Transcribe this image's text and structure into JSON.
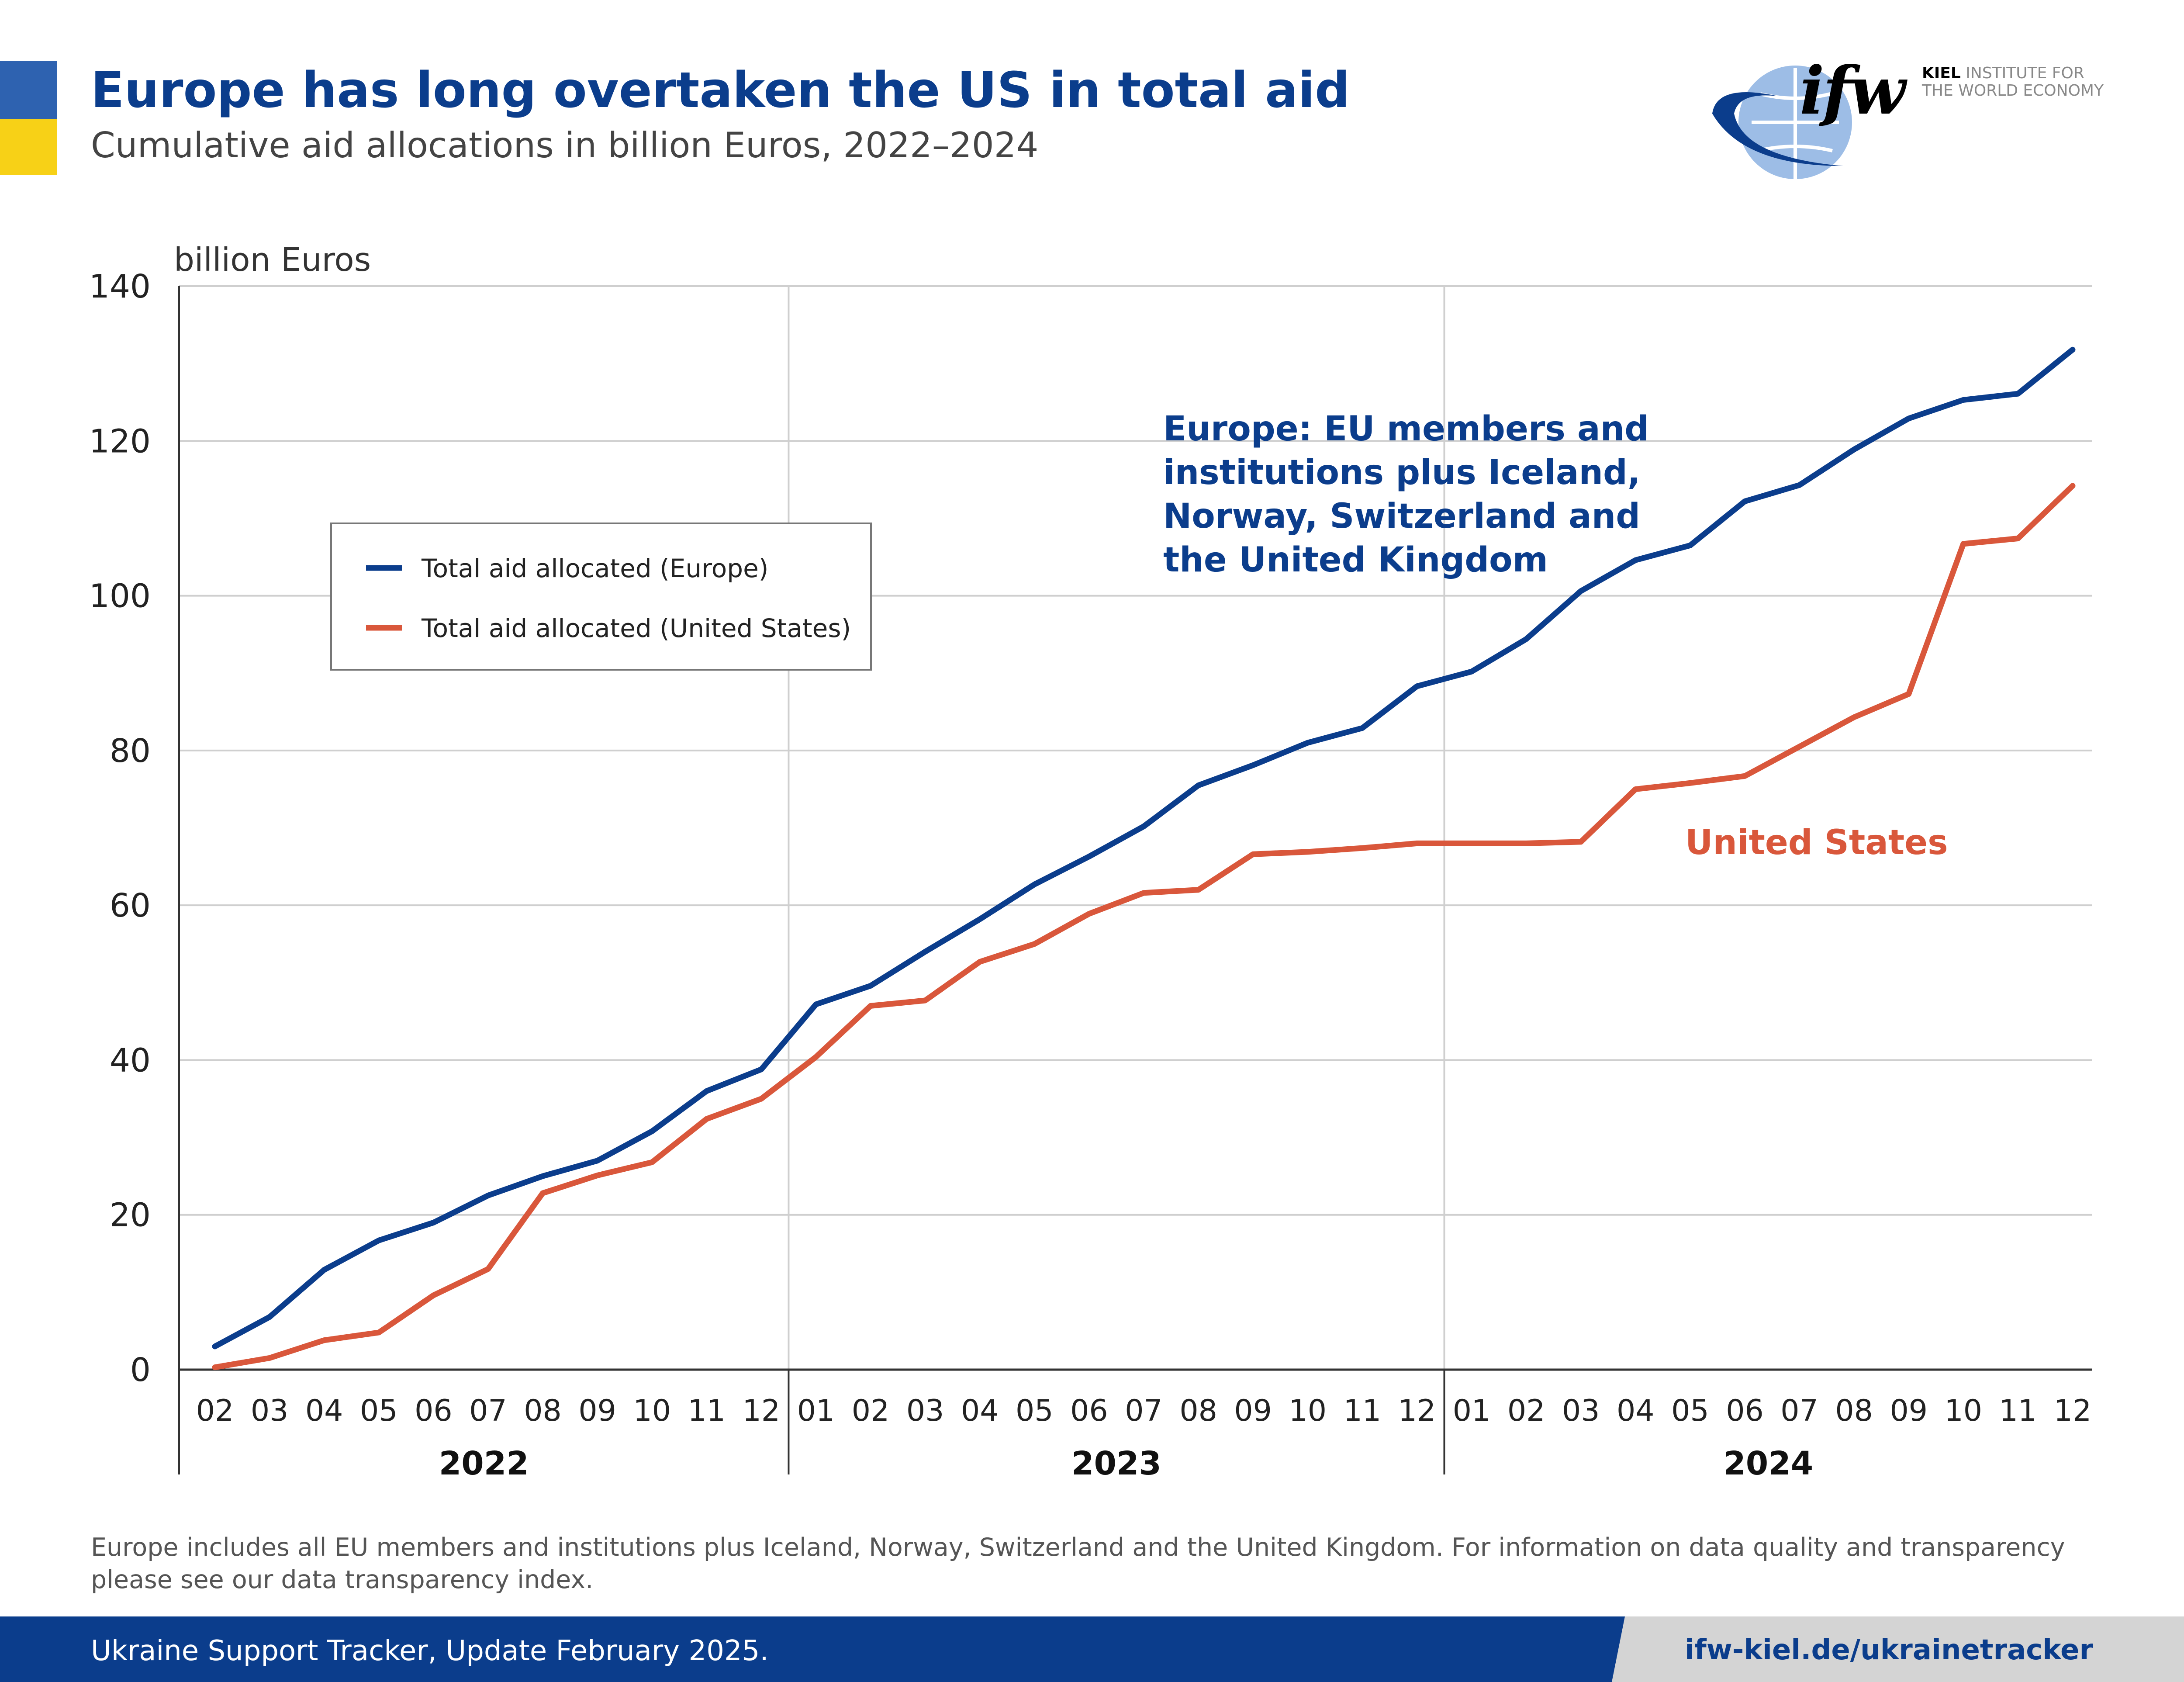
{
  "header": {
    "title": "Europe has long overtaken the US in total aid",
    "subtitle": "Cumulative aid allocations in billion Euros, 2022–2024"
  },
  "logo": {
    "mark": "ifw",
    "name_bold": "KIEL",
    "name_rest": " INSTITUTE FOR",
    "name_line2": "THE WORLD ECONOMY"
  },
  "chart_data": {
    "type": "line",
    "ylabel": "billion Euros",
    "ylim": [
      0,
      140
    ],
    "yticks": [
      0,
      20,
      40,
      60,
      80,
      100,
      120,
      140
    ],
    "grid": true,
    "legend_position": "upper-left",
    "x": [
      "02",
      "03",
      "04",
      "05",
      "06",
      "07",
      "08",
      "09",
      "10",
      "11",
      "12",
      "01",
      "02",
      "03",
      "04",
      "05",
      "06",
      "07",
      "08",
      "09",
      "10",
      "11",
      "12",
      "01",
      "02",
      "03",
      "04",
      "05",
      "06",
      "07",
      "08",
      "09",
      "10",
      "11",
      "12"
    ],
    "year_groups": [
      {
        "year": "2022",
        "count": 11
      },
      {
        "year": "2023",
        "count": 12
      },
      {
        "year": "2024",
        "count": 12
      }
    ],
    "series": [
      {
        "name": "Total aid allocated (Europe)",
        "color": "#0b3d8c",
        "values": [
          3.0,
          6.8,
          12.9,
          16.7,
          19.0,
          22.5,
          25.0,
          27.0,
          30.8,
          36.0,
          38.8,
          47.2,
          49.6,
          54.0,
          58.2,
          62.7,
          66.3,
          70.2,
          75.5,
          78.1,
          81.0,
          82.9,
          88.3,
          90.2,
          94.4,
          100.6,
          104.6,
          106.5,
          112.2,
          114.3,
          118.9,
          122.9,
          125.3,
          126.1,
          131.8
        ]
      },
      {
        "name": "Total aid allocated (United States)",
        "color": "#d9573b",
        "values": [
          0.3,
          1.5,
          3.8,
          4.8,
          9.6,
          13.0,
          22.8,
          25.1,
          26.8,
          32.4,
          35.0,
          40.4,
          47.0,
          47.7,
          52.7,
          55.0,
          58.9,
          61.6,
          62.0,
          66.6,
          66.9,
          67.4,
          68.0,
          68.0,
          68.0,
          68.2,
          75.0,
          75.8,
          76.7,
          80.5,
          84.3,
          87.3,
          106.7,
          107.4,
          114.2
        ]
      }
    ],
    "annotations": [
      {
        "lines": [
          "Europe: EU members and",
          "institutions plus Iceland,",
          "Norway, Switzerland and",
          "the United Kingdom"
        ],
        "color": "#0b3d8c"
      },
      {
        "lines": [
          "United States"
        ],
        "color": "#d9573b"
      }
    ]
  },
  "footnote": "Europe includes all EU members and institutions plus Iceland, Norway, Switzerland and the United Kingdom. For information on data quality and transparency please see our data transparency index.",
  "footer": {
    "source": "Ukraine Support Tracker, Update February 2025.",
    "url": "ifw-kiel.de/ukrainetracker"
  }
}
